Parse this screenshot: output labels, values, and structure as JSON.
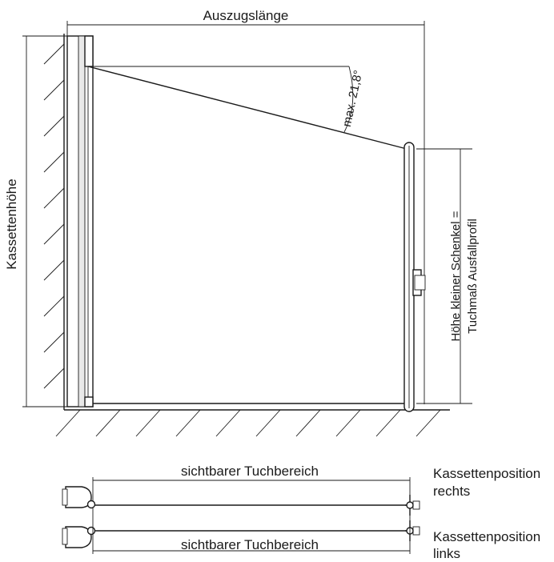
{
  "labels": {
    "extension_length": "Auszugslänge",
    "cassette_height": "Kassettenhöhe",
    "max_angle": "max. 21,8°",
    "small_leg_line1": "Höhe kleiner Schenkel =",
    "small_leg_line2": "Tuchmaß Ausfallprofil",
    "visible_area_top": "sichtbarer Tuchbereich",
    "visible_area_bottom": "sichtbarer Tuchbereich",
    "position_right_line1": "Kassettenposition",
    "position_right_line2": "rechts",
    "position_left_line1": "Kassettenposition",
    "position_left_line2": "links"
  },
  "colors": {
    "line": "#1a1a1a",
    "background": "#ffffff"
  }
}
